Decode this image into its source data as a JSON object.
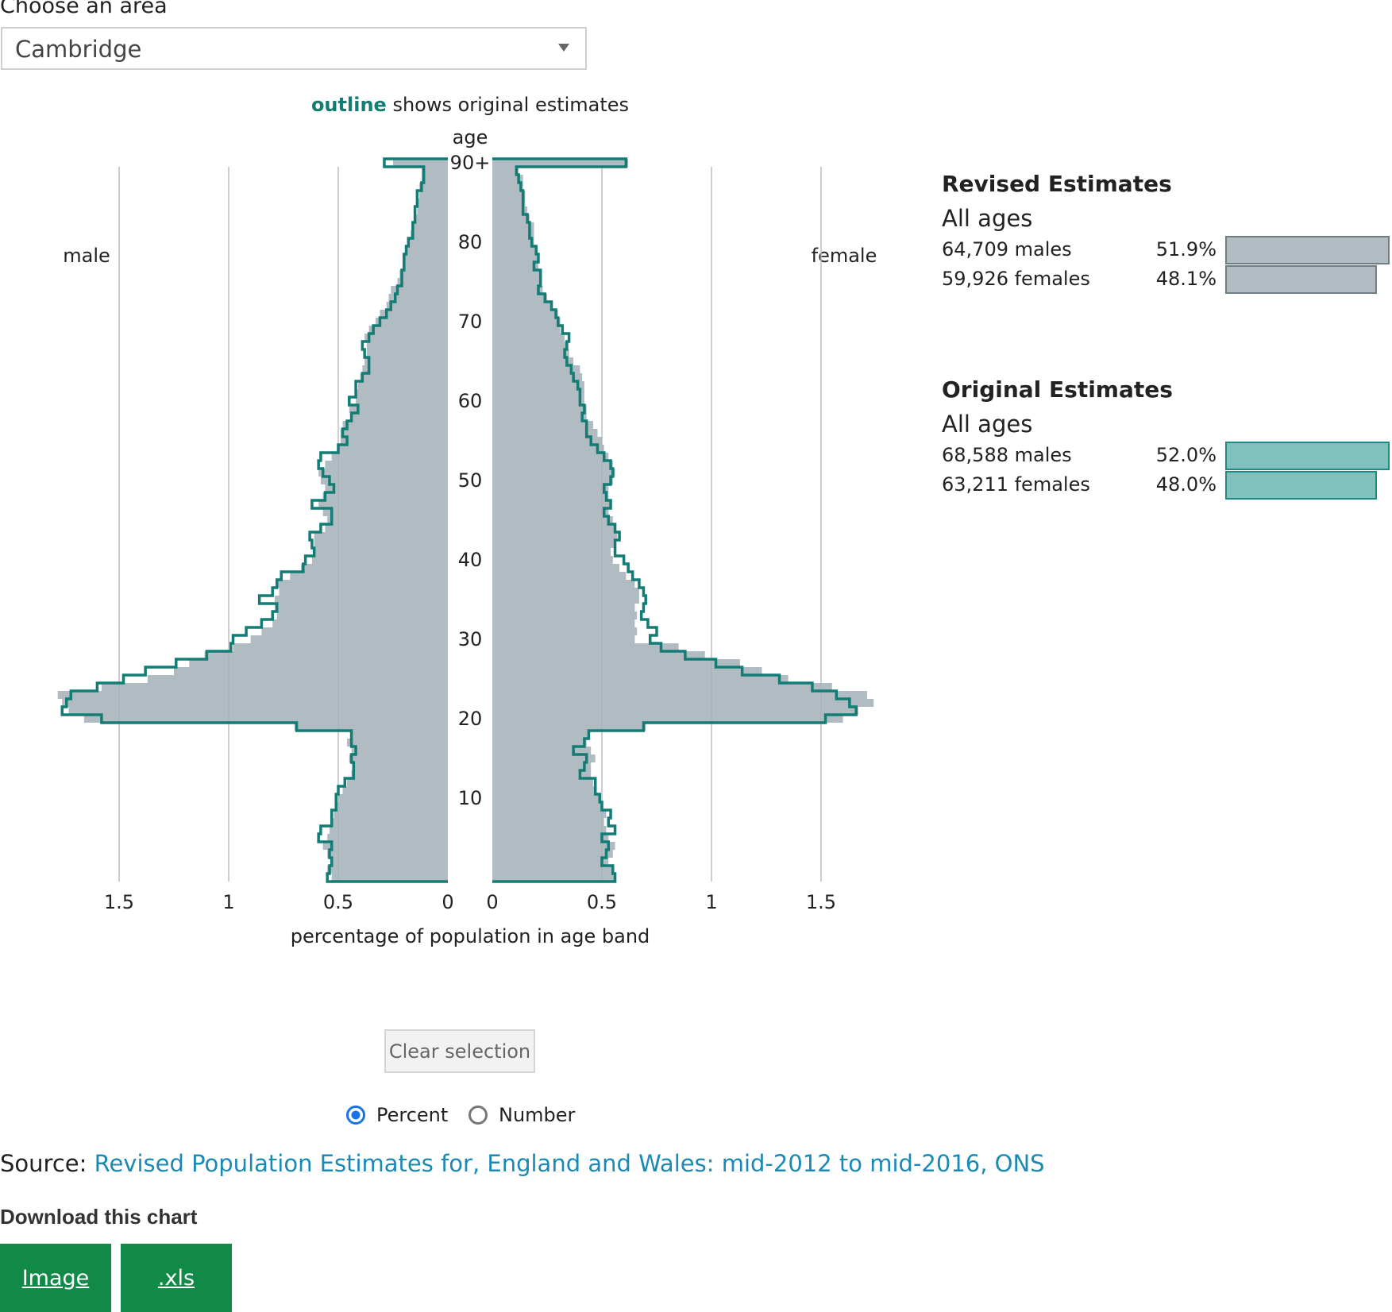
{
  "area": {
    "label": "Choose an area",
    "selected": "Cambridge"
  },
  "chart_data": {
    "type": "bar",
    "orientation": "horizontal-pyramid",
    "subtitle_highlight": "outline",
    "subtitle_rest": " shows original estimates",
    "age_axis_label": "age",
    "xlabel": "percentage of population in age band",
    "left_label": "male",
    "right_label": "female",
    "xlim": [
      0,
      1.75
    ],
    "x_ticks": [
      "1.5",
      "1",
      "0.5",
      "0",
      "0",
      "0.5",
      "1",
      "1.5"
    ],
    "x_tick_values": [
      1.5,
      1,
      0.5,
      0,
      0,
      0.5,
      1,
      1.5
    ],
    "age_ticks": [
      "10",
      "20",
      "30",
      "40",
      "50",
      "60",
      "70",
      "80",
      "90+"
    ],
    "age_tick_values": [
      10,
      20,
      30,
      40,
      50,
      60,
      70,
      80,
      90
    ],
    "ages": [
      0,
      1,
      2,
      3,
      4,
      5,
      6,
      7,
      8,
      9,
      10,
      11,
      12,
      13,
      14,
      15,
      16,
      17,
      18,
      19,
      20,
      21,
      22,
      23,
      24,
      25,
      26,
      27,
      28,
      29,
      30,
      31,
      32,
      33,
      34,
      35,
      36,
      37,
      38,
      39,
      40,
      41,
      42,
      43,
      44,
      45,
      46,
      47,
      48,
      49,
      50,
      51,
      52,
      53,
      54,
      55,
      56,
      57,
      58,
      59,
      60,
      61,
      62,
      63,
      64,
      65,
      66,
      67,
      68,
      69,
      70,
      71,
      72,
      73,
      74,
      75,
      76,
      77,
      78,
      79,
      80,
      81,
      82,
      83,
      84,
      85,
      86,
      87,
      88,
      89,
      90
    ],
    "series": [
      {
        "name": "Revised Estimates",
        "male": [
          0.53,
          0.55,
          0.53,
          0.55,
          0.57,
          0.55,
          0.54,
          0.53,
          0.52,
          0.51,
          0.5,
          0.48,
          0.46,
          0.44,
          0.43,
          0.45,
          0.44,
          0.46,
          0.44,
          0.7,
          1.66,
          1.73,
          1.76,
          1.78,
          1.58,
          1.37,
          1.25,
          1.18,
          1.11,
          0.98,
          0.9,
          0.85,
          0.8,
          0.78,
          0.79,
          0.79,
          0.77,
          0.78,
          0.72,
          0.67,
          0.62,
          0.61,
          0.61,
          0.61,
          0.56,
          0.55,
          0.57,
          0.59,
          0.57,
          0.56,
          0.58,
          0.59,
          0.56,
          0.53,
          0.5,
          0.49,
          0.49,
          0.48,
          0.44,
          0.45,
          0.42,
          0.42,
          0.41,
          0.4,
          0.39,
          0.38,
          0.37,
          0.37,
          0.38,
          0.36,
          0.33,
          0.31,
          0.28,
          0.27,
          0.26,
          0.23,
          0.22,
          0.2,
          0.2,
          0.19,
          0.18,
          0.17,
          0.16,
          0.15,
          0.14,
          0.14,
          0.13,
          0.13,
          0.12,
          0.12,
          0.25
        ],
        "female": [
          0.56,
          0.55,
          0.53,
          0.55,
          0.56,
          0.53,
          0.52,
          0.51,
          0.52,
          0.5,
          0.49,
          0.47,
          0.46,
          0.45,
          0.45,
          0.47,
          0.45,
          0.43,
          0.44,
          0.7,
          1.6,
          1.67,
          1.74,
          1.71,
          1.55,
          1.35,
          1.23,
          1.13,
          0.97,
          0.85,
          0.65,
          0.66,
          0.65,
          0.66,
          0.65,
          0.67,
          0.67,
          0.65,
          0.61,
          0.58,
          0.55,
          0.54,
          0.56,
          0.57,
          0.56,
          0.55,
          0.53,
          0.54,
          0.53,
          0.53,
          0.55,
          0.56,
          0.55,
          0.53,
          0.51,
          0.5,
          0.48,
          0.46,
          0.43,
          0.43,
          0.42,
          0.42,
          0.42,
          0.41,
          0.4,
          0.37,
          0.35,
          0.34,
          0.33,
          0.31,
          0.31,
          0.3,
          0.27,
          0.25,
          0.23,
          0.22,
          0.22,
          0.21,
          0.21,
          0.2,
          0.19,
          0.19,
          0.19,
          0.17,
          0.16,
          0.15,
          0.15,
          0.14,
          0.14,
          0.12,
          0.62
        ]
      },
      {
        "name": "Original Estimates",
        "male": [
          0.55,
          0.54,
          0.53,
          0.54,
          0.53,
          0.59,
          0.58,
          0.53,
          0.53,
          0.51,
          0.51,
          0.5,
          0.47,
          0.43,
          0.43,
          0.44,
          0.42,
          0.44,
          0.44,
          0.69,
          1.58,
          1.76,
          1.74,
          1.72,
          1.6,
          1.48,
          1.38,
          1.24,
          1.1,
          0.99,
          0.98,
          0.92,
          0.85,
          0.8,
          0.78,
          0.86,
          0.8,
          0.78,
          0.76,
          0.66,
          0.65,
          0.61,
          0.62,
          0.63,
          0.58,
          0.53,
          0.53,
          0.62,
          0.56,
          0.52,
          0.54,
          0.57,
          0.59,
          0.58,
          0.5,
          0.46,
          0.48,
          0.46,
          0.44,
          0.41,
          0.45,
          0.42,
          0.42,
          0.39,
          0.36,
          0.36,
          0.38,
          0.39,
          0.36,
          0.34,
          0.31,
          0.28,
          0.26,
          0.24,
          0.23,
          0.21,
          0.21,
          0.2,
          0.2,
          0.19,
          0.18,
          0.16,
          0.16,
          0.15,
          0.15,
          0.14,
          0.14,
          0.12,
          0.11,
          0.11,
          0.29
        ],
        "female": [
          0.56,
          0.55,
          0.5,
          0.52,
          0.53,
          0.5,
          0.56,
          0.53,
          0.54,
          0.5,
          0.49,
          0.47,
          0.47,
          0.4,
          0.42,
          0.43,
          0.37,
          0.42,
          0.44,
          0.69,
          1.52,
          1.66,
          1.63,
          1.57,
          1.46,
          1.31,
          1.14,
          1.02,
          0.88,
          0.77,
          0.72,
          0.75,
          0.71,
          0.68,
          0.69,
          0.7,
          0.69,
          0.67,
          0.64,
          0.62,
          0.6,
          0.56,
          0.56,
          0.58,
          0.56,
          0.53,
          0.51,
          0.54,
          0.52,
          0.51,
          0.54,
          0.55,
          0.54,
          0.51,
          0.48,
          0.45,
          0.43,
          0.43,
          0.41,
          0.42,
          0.4,
          0.4,
          0.39,
          0.37,
          0.36,
          0.34,
          0.33,
          0.34,
          0.35,
          0.32,
          0.3,
          0.29,
          0.27,
          0.24,
          0.21,
          0.22,
          0.22,
          0.19,
          0.21,
          0.2,
          0.18,
          0.17,
          0.17,
          0.16,
          0.14,
          0.14,
          0.14,
          0.13,
          0.12,
          0.11,
          0.61
        ]
      }
    ]
  },
  "summary": {
    "revised": {
      "title": "Revised Estimates",
      "sub": "All ages",
      "males_label": "64,709 males",
      "males_pct": "51.9%",
      "males_value": 51.9,
      "females_label": "59,926 females",
      "females_pct": "48.1%",
      "females_value": 48.1
    },
    "original": {
      "title": "Original Estimates",
      "sub": "All ages",
      "males_label": "68,588 males",
      "males_pct": "52.0%",
      "males_value": 52.0,
      "females_label": "63,211 females",
      "females_pct": "48.0%",
      "females_value": 48.0
    }
  },
  "controls": {
    "clear_label": "Clear selection",
    "radio_percent": "Percent",
    "radio_number": "Number",
    "selected_mode": "Percent"
  },
  "source": {
    "prefix": "Source: ",
    "link_text": "Revised Population Estimates for, England and Wales: mid-2012 to mid-2016, ONS"
  },
  "download": {
    "title": "Download this chart",
    "image_label": "Image",
    "xls_label": ".xls"
  },
  "colors": {
    "revised_fill": "#b1bcc2",
    "outline": "#127c75",
    "original_fill": "#80c1bd",
    "link": "#1a8ab5",
    "download_bg": "#128a47"
  }
}
